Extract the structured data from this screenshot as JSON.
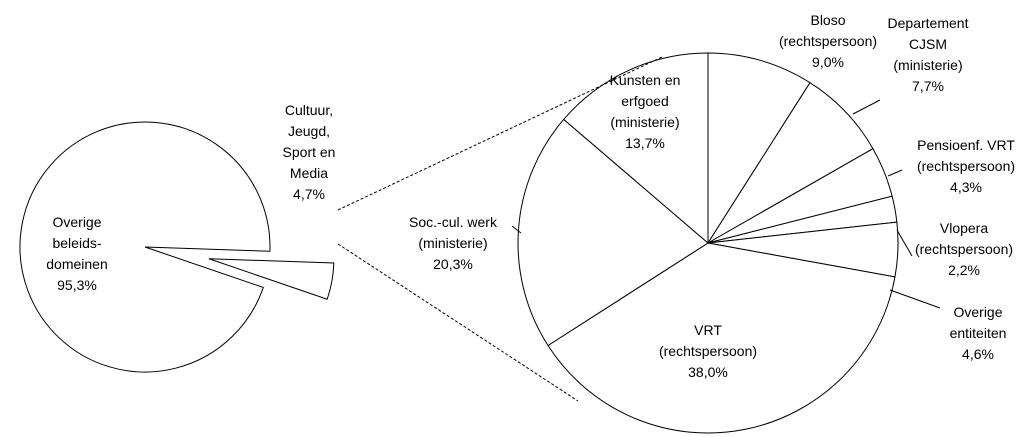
{
  "chart_data": [
    {
      "type": "pie",
      "categories": [
        "Overige\nbeleids-\ndomeinen",
        "Cultuur,\nJeugd,\nSport en\nMedia"
      ],
      "values": [
        95.3,
        4.7
      ],
      "value_labels": [
        "95,3%",
        "4,7%"
      ],
      "color": "#ffffff"
    },
    {
      "type": "pie",
      "categories": [
        "Bloso\n(rechtspersoon)",
        "Departement\nCJSM\n(ministerie)",
        "Pensioenf. VRT\n(rechtspersoon)",
        "Vlopera\n(rechtspersoon)",
        "Overige\nentiteiten",
        "VRT\n(rechtspersoon)",
        "Soc.-cul. werk\n(ministerie)",
        "Kunsten en\nerfgoed\n(ministerie)"
      ],
      "values": [
        9.0,
        7.7,
        4.3,
        2.2,
        4.6,
        38.0,
        20.3,
        13.7
      ],
      "value_labels": [
        "9,0%",
        "7,7%",
        "4,3%",
        "2,2%",
        "4,6%",
        "38,0%",
        "20,3%",
        "13,7%"
      ],
      "color": "#ffffff"
    }
  ]
}
